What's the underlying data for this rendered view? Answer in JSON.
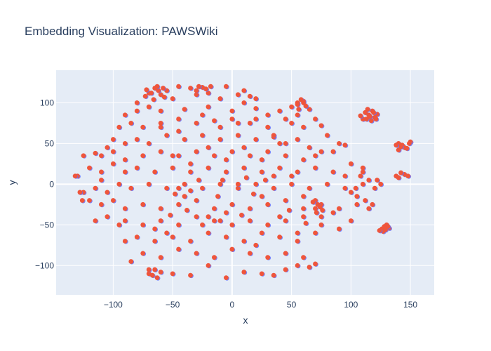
{
  "chart_data": {
    "type": "scatter",
    "title": "Embedding Visualization: PAWSWiki",
    "xlabel": "x",
    "ylabel": "y",
    "xlim": [
      -148,
      170
    ],
    "ylim": [
      -136,
      140
    ],
    "x_ticks": [
      -100,
      -50,
      0,
      50,
      100,
      150
    ],
    "x_tick_labels": [
      "−100",
      "−50",
      "0",
      "50",
      "100",
      "150"
    ],
    "y_ticks": [
      -100,
      -50,
      0,
      50,
      100
    ],
    "y_tick_labels": [
      "−100",
      "−50",
      "0",
      "50",
      "100"
    ],
    "grid": true,
    "legend": "none",
    "colors": {
      "plot_bg": "#e5ecf6",
      "grid": "#ffffff",
      "points": "#ef553b",
      "points_under": "#636efa"
    },
    "series": [
      {
        "values": [
          [
            -70,
            112
          ],
          [
            -65,
            118
          ],
          [
            -60,
            110
          ],
          [
            -55,
            115
          ],
          [
            -45,
            120
          ],
          [
            -35,
            118
          ],
          [
            -25,
            119
          ],
          [
            -20,
            112
          ],
          [
            -5,
            120
          ],
          [
            5,
            110
          ],
          [
            10,
            115
          ],
          [
            15,
            108
          ],
          [
            20,
            105
          ],
          [
            10,
            100
          ],
          [
            -10,
            105
          ],
          [
            -30,
            110
          ],
          [
            -50,
            105
          ],
          [
            -80,
            100
          ],
          [
            -90,
            85
          ],
          [
            -80,
            90
          ],
          [
            -70,
            95
          ],
          [
            -60,
            90
          ],
          [
            -40,
            92
          ],
          [
            -20,
            95
          ],
          [
            0,
            90
          ],
          [
            20,
            93
          ],
          [
            30,
            85
          ],
          [
            40,
            90
          ],
          [
            50,
            95
          ],
          [
            55,
            100
          ],
          [
            60,
            102
          ],
          [
            65,
            92
          ],
          [
            45,
            80
          ],
          [
            50,
            75
          ],
          [
            55,
            85
          ],
          [
            60,
            70
          ],
          [
            70,
            80
          ],
          [
            75,
            72
          ],
          [
            80,
            60
          ],
          [
            -95,
            70
          ],
          [
            -85,
            75
          ],
          [
            -75,
            70
          ],
          [
            -60,
            75
          ],
          [
            -45,
            80
          ],
          [
            -30,
            75
          ],
          [
            -15,
            78
          ],
          [
            0,
            80
          ],
          [
            15,
            75
          ],
          [
            30,
            70
          ],
          [
            -100,
            55
          ],
          [
            -90,
            50
          ],
          [
            -80,
            55
          ],
          [
            -70,
            50
          ],
          [
            -55,
            60
          ],
          [
            -40,
            55
          ],
          [
            -25,
            60
          ],
          [
            -10,
            55
          ],
          [
            5,
            60
          ],
          [
            20,
            55
          ],
          [
            35,
            58
          ],
          [
            45,
            50
          ],
          [
            55,
            55
          ],
          [
            65,
            45
          ],
          [
            75,
            40
          ],
          [
            -110,
            35
          ],
          [
            -100,
            40
          ],
          [
            -90,
            30
          ],
          [
            -75,
            35
          ],
          [
            -60,
            40
          ],
          [
            -45,
            35
          ],
          [
            -30,
            40
          ],
          [
            -15,
            35
          ],
          [
            0,
            40
          ],
          [
            15,
            35
          ],
          [
            30,
            40
          ],
          [
            45,
            35
          ],
          [
            60,
            30
          ],
          [
            70,
            35
          ],
          [
            85,
            40
          ],
          [
            90,
            50
          ],
          [
            95,
            48
          ],
          [
            -120,
            20
          ],
          [
            -110,
            15
          ],
          [
            -100,
            25
          ],
          [
            -90,
            15
          ],
          [
            -80,
            20
          ],
          [
            -65,
            15
          ],
          [
            -50,
            20
          ],
          [
            -35,
            15
          ],
          [
            -20,
            20
          ],
          [
            -5,
            15
          ],
          [
            10,
            20
          ],
          [
            25,
            15
          ],
          [
            40,
            20
          ],
          [
            55,
            15
          ],
          [
            70,
            20
          ],
          [
            85,
            15
          ],
          [
            100,
            25
          ],
          [
            110,
            20
          ],
          [
            -125,
            -10
          ],
          [
            -115,
            -5
          ],
          [
            -105,
            -10
          ],
          [
            -95,
            0
          ],
          [
            -85,
            -5
          ],
          [
            -70,
            0
          ],
          [
            -55,
            -5
          ],
          [
            -40,
            0
          ],
          [
            -25,
            -5
          ],
          [
            -10,
            0
          ],
          [
            5,
            -5
          ],
          [
            20,
            0
          ],
          [
            35,
            -5
          ],
          [
            50,
            0
          ],
          [
            65,
            -5
          ],
          [
            80,
            0
          ],
          [
            95,
            -5
          ],
          [
            110,
            0
          ],
          [
            115,
            5
          ],
          [
            120,
            -5
          ],
          [
            -130,
            10
          ],
          [
            -120,
            -20
          ],
          [
            -110,
            -25
          ],
          [
            -100,
            -20
          ],
          [
            -90,
            -30
          ],
          [
            -75,
            -25
          ],
          [
            -60,
            -30
          ],
          [
            -45,
            -25
          ],
          [
            -30,
            -20
          ],
          [
            -15,
            -30
          ],
          [
            0,
            -25
          ],
          [
            15,
            -30
          ],
          [
            30,
            -25
          ],
          [
            45,
            -20
          ],
          [
            60,
            -30
          ],
          [
            75,
            -25
          ],
          [
            90,
            -30
          ],
          [
            105,
            -25
          ],
          [
            -115,
            -45
          ],
          [
            -105,
            -40
          ],
          [
            -90,
            -45
          ],
          [
            -75,
            -50
          ],
          [
            -60,
            -45
          ],
          [
            -45,
            -50
          ],
          [
            -30,
            -40
          ],
          [
            -15,
            -45
          ],
          [
            0,
            -50
          ],
          [
            15,
            -45
          ],
          [
            30,
            -50
          ],
          [
            45,
            -45
          ],
          [
            60,
            -40
          ],
          [
            75,
            -50
          ],
          [
            90,
            -55
          ],
          [
            100,
            -45
          ],
          [
            -90,
            -70
          ],
          [
            -80,
            -65
          ],
          [
            -65,
            -70
          ],
          [
            -50,
            -65
          ],
          [
            -35,
            -70
          ],
          [
            -20,
            -60
          ],
          [
            -5,
            -65
          ],
          [
            10,
            -70
          ],
          [
            25,
            -60
          ],
          [
            40,
            -65
          ],
          [
            55,
            -70
          ],
          [
            70,
            -60
          ],
          [
            -75,
            -85
          ],
          [
            -60,
            -90
          ],
          [
            -45,
            -80
          ],
          [
            -30,
            -85
          ],
          [
            -15,
            -90
          ],
          [
            0,
            -80
          ],
          [
            15,
            -85
          ],
          [
            30,
            -90
          ],
          [
            45,
            -85
          ],
          [
            60,
            -90
          ],
          [
            -70,
            -110
          ],
          [
            -65,
            -105
          ],
          [
            -50,
            -110
          ],
          [
            -35,
            -112
          ],
          [
            -20,
            -100
          ],
          [
            -5,
            -115
          ],
          [
            10,
            -108
          ],
          [
            25,
            -110
          ],
          [
            35,
            -112
          ],
          [
            45,
            -105
          ],
          [
            55,
            -100
          ],
          [
            65,
            -102
          ],
          [
            70,
            -98
          ],
          [
            -85,
            -95
          ],
          [
            -95,
            -50
          ],
          [
            -110,
            5
          ],
          [
            -125,
            35
          ],
          [
            -115,
            38
          ],
          [
            -105,
            45
          ],
          [
            60,
            -15
          ],
          [
            75,
            -40
          ],
          [
            70,
            -20
          ],
          [
            85,
            -35
          ],
          [
            105,
            -15
          ],
          [
            115,
            -30
          ],
          [
            110,
            15
          ],
          [
            95,
            10
          ],
          [
            -45,
            -5
          ],
          [
            -40,
            -15
          ],
          [
            -48,
            -12
          ],
          [
            -35,
            -8
          ],
          [
            5,
            0
          ],
          [
            12,
            8
          ],
          [
            -8,
            5
          ],
          [
            25,
            -15
          ],
          [
            35,
            10
          ],
          [
            50,
            10
          ],
          [
            -20,
            -40
          ],
          [
            -25,
            -50
          ],
          [
            -10,
            -45
          ],
          [
            40,
            -40
          ],
          [
            55,
            -60
          ],
          [
            20,
            -75
          ],
          [
            -55,
            -60
          ],
          [
            -65,
            -55
          ],
          [
            -50,
            35
          ],
          [
            -35,
            25
          ],
          [
            -20,
            45
          ],
          [
            -5,
            30
          ],
          [
            10,
            45
          ],
          [
            25,
            30
          ],
          [
            40,
            50
          ],
          [
            -60,
            70
          ],
          [
            -45,
            65
          ],
          [
            -25,
            85
          ],
          [
            -10,
            70
          ],
          [
            5,
            75
          ],
          [
            20,
            80
          ],
          [
            35,
            60
          ],
          [
            -68,
            112
          ],
          [
            -62,
            115
          ],
          [
            -58,
            118
          ],
          [
            -73,
            108
          ],
          [
            -66,
            104
          ],
          [
            -72,
            116
          ],
          [
            -63,
            120
          ],
          [
            -57,
            107
          ],
          [
            -28,
            120
          ],
          [
            -22,
            117
          ],
          [
            -18,
            120
          ],
          [
            -30,
            115
          ],
          [
            58,
            104
          ],
          [
            60,
            100
          ],
          [
            55,
            98
          ],
          [
            62,
            96
          ],
          [
            56,
            92
          ],
          [
            112,
            88
          ],
          [
            115,
            85
          ],
          [
            118,
            90
          ],
          [
            120,
            82
          ],
          [
            110,
            80
          ],
          [
            117,
            78
          ],
          [
            122,
            86
          ],
          [
            114,
            92
          ],
          [
            108,
            84
          ],
          [
            119,
            88
          ],
          [
            113,
            80
          ],
          [
            116,
            83
          ],
          [
            121,
            80
          ],
          [
            140,
            50
          ],
          [
            143,
            48
          ],
          [
            145,
            45
          ],
          [
            140,
            42
          ],
          [
            147,
            44
          ],
          [
            142,
            46
          ],
          [
            138,
            48
          ],
          [
            150,
            52
          ],
          [
            149,
            50
          ],
          [
            126,
            -55
          ],
          [
            128,
            -52
          ],
          [
            130,
            -50
          ],
          [
            132,
            -54
          ],
          [
            127,
            -58
          ],
          [
            129,
            -56
          ],
          [
            131,
            -52
          ],
          [
            124,
            -57
          ],
          [
            138,
            10
          ],
          [
            140,
            8
          ],
          [
            145,
            12
          ],
          [
            142,
            14
          ],
          [
            148,
            10
          ],
          [
            72,
            -25
          ],
          [
            70,
            -30
          ],
          [
            74,
            -28
          ],
          [
            68,
            -22
          ],
          [
            76,
            -32
          ],
          [
            71,
            -35
          ],
          [
            -67,
            -112
          ],
          [
            -63,
            -115
          ],
          [
            -70,
            -105
          ],
          [
            -60,
            -108
          ],
          [
            -128,
            -10
          ],
          [
            -132,
            10
          ],
          [
            -126,
            -20
          ],
          [
            100,
            -10
          ],
          [
            104,
            -5
          ],
          [
            108,
            10
          ],
          [
            112,
            -20
          ],
          [
            118,
            -25
          ],
          [
            122,
            5
          ],
          [
            125,
            0
          ],
          [
            -5,
            -35
          ],
          [
            8,
            -38
          ],
          [
            -12,
            -15
          ],
          [
            18,
            -12
          ],
          [
            28,
            5
          ],
          [
            -28,
            5
          ],
          [
            -38,
            -32
          ],
          [
            48,
            -32
          ],
          [
            -52,
            -38
          ],
          [
            62,
            -48
          ]
        ]
      }
    ]
  }
}
